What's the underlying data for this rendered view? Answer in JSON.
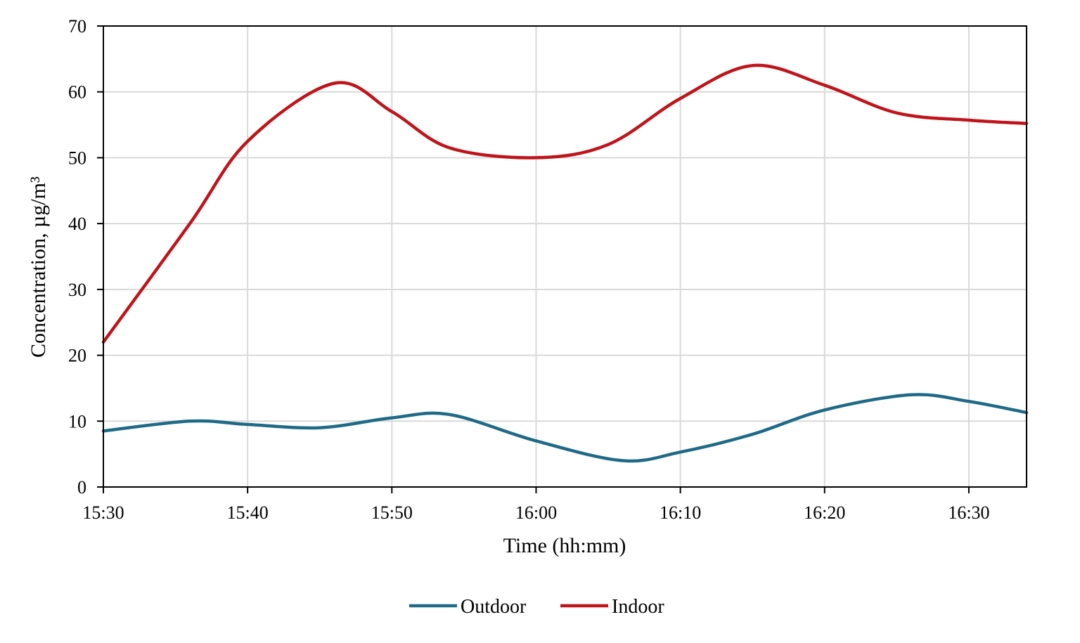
{
  "chart_data": {
    "type": "line",
    "title": "",
    "xlabel": "Time (hh:mm)",
    "ylabel": "Concentration, µg/m³",
    "ylim": [
      0,
      70
    ],
    "yticks": [
      0,
      10,
      20,
      30,
      40,
      50,
      60,
      70
    ],
    "xlim": [
      "15:30",
      "16:34"
    ],
    "xticks": [
      "15:30",
      "15:40",
      "15:50",
      "16:00",
      "16:10",
      "16:20",
      "16:30"
    ],
    "grid": true,
    "legend": "bottom",
    "series": [
      {
        "name": "Outdoor",
        "color": "#1f6a86",
        "x": [
          "15:30",
          "15:36",
          "15:40",
          "15:45",
          "15:50",
          "15:54",
          "16:00",
          "16:06",
          "16:10",
          "16:15",
          "16:20",
          "16:26",
          "16:30",
          "16:34"
        ],
        "values": [
          8.5,
          10.0,
          9.5,
          9.0,
          10.5,
          11.0,
          7.0,
          4.0,
          5.3,
          8.0,
          11.7,
          14.0,
          13.0,
          11.3
        ]
      },
      {
        "name": "Indoor",
        "color": "#c0141a",
        "x": [
          "15:30",
          "15:36",
          "15:40",
          "15:46",
          "15:50",
          "15:54",
          "16:00",
          "16:05",
          "16:10",
          "16:15",
          "16:20",
          "16:25",
          "16:30",
          "16:34"
        ],
        "values": [
          22.0,
          40.0,
          52.5,
          61.3,
          57.0,
          51.5,
          50.0,
          52.0,
          59.0,
          64.0,
          61.0,
          56.8,
          55.7,
          55.2
        ]
      }
    ]
  }
}
